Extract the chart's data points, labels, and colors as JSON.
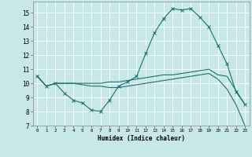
{
  "title": "",
  "xlabel": "Humidex (Indice chaleur)",
  "ylabel": "",
  "xlim": [
    -0.5,
    23.5
  ],
  "ylim": [
    7,
    15.8
  ],
  "yticks": [
    7,
    8,
    9,
    10,
    11,
    12,
    13,
    14,
    15
  ],
  "xticks": [
    0,
    1,
    2,
    3,
    4,
    5,
    6,
    7,
    8,
    9,
    10,
    11,
    12,
    13,
    14,
    15,
    16,
    17,
    18,
    19,
    20,
    21,
    22,
    23
  ],
  "bg_color": "#c8e8e8",
  "line_color": "#1a7070",
  "grid_color": "#ffffff",
  "lines": [
    {
      "x": [
        0,
        1,
        2,
        3,
        4,
        5,
        6,
        7,
        8,
        9,
        10,
        11,
        12,
        13,
        14,
        15,
        16,
        17,
        18,
        19,
        20,
        21,
        22,
        23
      ],
      "y": [
        10.5,
        9.8,
        10.0,
        9.3,
        8.8,
        8.6,
        8.1,
        8.0,
        8.8,
        9.8,
        10.1,
        10.5,
        12.1,
        13.6,
        14.6,
        15.3,
        15.2,
        15.3,
        14.7,
        14.0,
        12.7,
        11.4,
        9.4,
        8.5
      ],
      "marker": "x",
      "has_markers": true
    },
    {
      "x": [
        0,
        1,
        2,
        3,
        4,
        5,
        6,
        7,
        8,
        9,
        10,
        11,
        12,
        13,
        14,
        15,
        16,
        17,
        18,
        19,
        20,
        21,
        22,
        23
      ],
      "y": [
        10.5,
        9.8,
        10.0,
        10.0,
        10.0,
        10.0,
        10.0,
        10.0,
        10.1,
        10.1,
        10.2,
        10.3,
        10.4,
        10.5,
        10.6,
        10.6,
        10.7,
        10.8,
        10.9,
        11.0,
        10.6,
        10.5,
        9.5,
        8.5
      ],
      "marker": null,
      "has_markers": false
    },
    {
      "x": [
        0,
        1,
        2,
        3,
        4,
        5,
        6,
        7,
        8,
        9,
        10,
        11,
        12,
        13,
        14,
        15,
        16,
        17,
        18,
        19,
        20,
        21,
        22,
        23
      ],
      "y": [
        10.5,
        9.8,
        10.0,
        10.0,
        10.0,
        9.9,
        9.8,
        9.8,
        9.7,
        9.7,
        9.8,
        9.9,
        10.0,
        10.1,
        10.2,
        10.3,
        10.4,
        10.5,
        10.6,
        10.7,
        10.3,
        9.6,
        8.5,
        7.0
      ],
      "marker": null,
      "has_markers": false
    }
  ]
}
